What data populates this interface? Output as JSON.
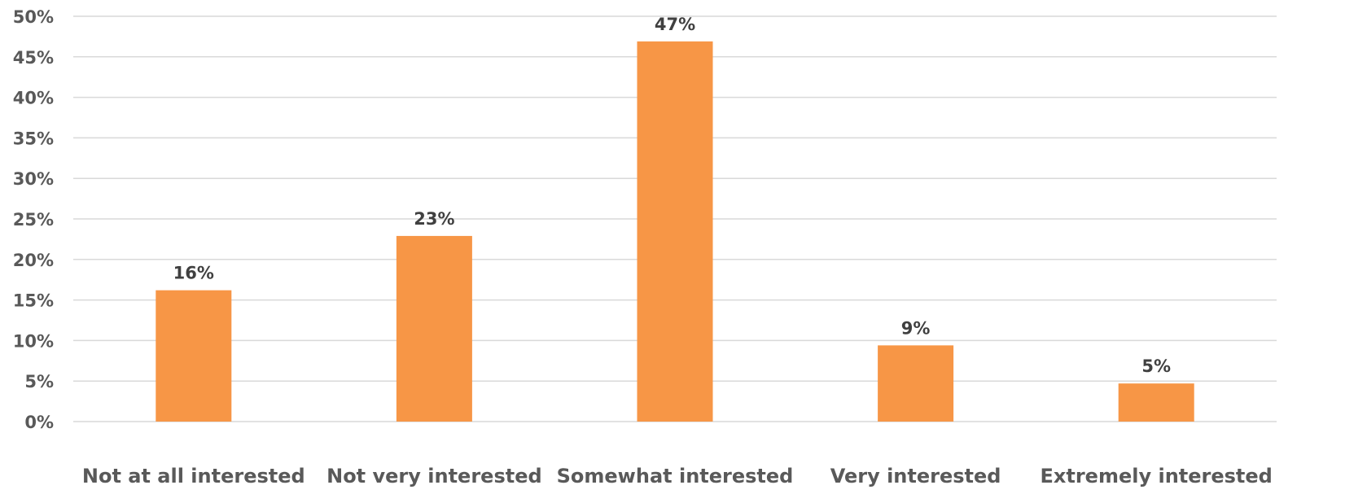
{
  "chart_data": {
    "type": "bar",
    "categories": [
      "Not at all interested",
      "Not very interested",
      "Somewhat interested",
      "Very interested",
      "Extremely interested"
    ],
    "values": [
      16.2,
      22.9,
      46.9,
      9.4,
      4.7
    ],
    "data_labels": [
      "16%",
      "23%",
      "47%",
      "9%",
      "5%"
    ],
    "title": "",
    "xlabel": "",
    "ylabel": "",
    "ylim": [
      0,
      50
    ],
    "yticks": [
      0,
      5,
      10,
      15,
      20,
      25,
      30,
      35,
      40,
      45,
      50
    ],
    "ytick_labels": [
      "0%",
      "5%",
      "10%",
      "15%",
      "20%",
      "25%",
      "30%",
      "35%",
      "40%",
      "45%",
      "50%"
    ],
    "grid": true,
    "legend": "none",
    "bar_color": "#f79646"
  }
}
